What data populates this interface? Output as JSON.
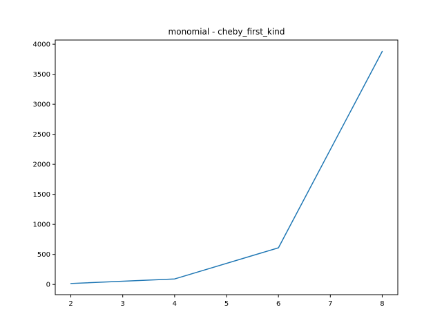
{
  "chart_data": {
    "type": "line",
    "title": "monomial - cheby_first_kind",
    "xlabel": "",
    "ylabel": "",
    "x": [
      2,
      4,
      6,
      8
    ],
    "series": [
      {
        "values": [
          16,
          92,
          610,
          3880
        ],
        "color": "#1f77b4"
      }
    ],
    "xlim": [
      1.7,
      8.3
    ],
    "ylim": [
      -170,
      4070
    ],
    "xticks": [
      2,
      3,
      4,
      5,
      6,
      7,
      8
    ],
    "yticks": [
      0,
      500,
      1000,
      1500,
      2000,
      2500,
      3000,
      3500,
      4000
    ],
    "grid": false,
    "legend": "none"
  }
}
